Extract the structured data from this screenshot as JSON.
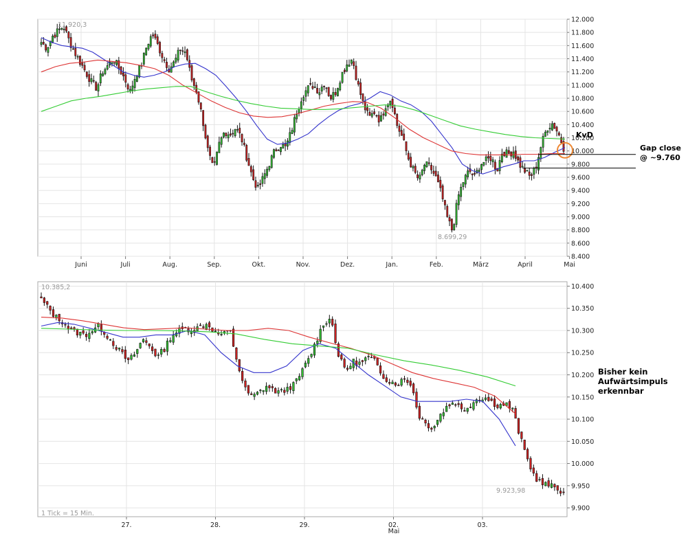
{
  "chart_data": [
    {
      "type": "candlestick",
      "title": "",
      "ylim": [
        8400,
        12000
      ],
      "y_ticks": [
        "12.000",
        "11.800",
        "11.600",
        "11.400",
        "11.200",
        "11.000",
        "10.800",
        "10.600",
        "10.400",
        "10.200",
        "10.000",
        "9.800",
        "9.600",
        "9.400",
        "9.200",
        "9.000",
        "8.800",
        "8.600",
        "8.400"
      ],
      "y_tick_values": [
        12000,
        11800,
        11600,
        11400,
        11200,
        11000,
        10800,
        10600,
        10400,
        10200,
        10000,
        9800,
        9600,
        9400,
        9200,
        9000,
        8800,
        8600,
        8400
      ],
      "x_ticks": [
        "Juni",
        "Juli",
        "Aug.",
        "Sep.",
        "Okt.",
        "Nov.",
        "Dez.",
        "Jan.",
        "Feb.",
        "März",
        "April",
        "Mai"
      ],
      "high_label": "11.920,3",
      "low_label": "8.699,29",
      "high_value": 11920.3,
      "low_value": 8699.29,
      "annotation_circle_label": "KvD",
      "annotation_line1": "Gap close",
      "annotation_line2": "@ ~9.760",
      "annotation_level": 9760,
      "circle_level": 10010,
      "close_path": [
        11650,
        11560,
        11740,
        11820,
        11900,
        11680,
        11500,
        11350,
        11200,
        11050,
        10950,
        11200,
        11300,
        11400,
        11250,
        11100,
        10900,
        11150,
        11300,
        11600,
        11780,
        11600,
        11400,
        11250,
        11350,
        11550,
        11500,
        11100,
        10900,
        10500,
        10000,
        9700,
        10100,
        10300,
        10250,
        10350,
        10200,
        9900,
        9600,
        9420,
        9600,
        9800,
        10000,
        10100,
        10050,
        10300,
        10600,
        10850,
        10950,
        11000,
        10900,
        11050,
        10800,
        10900,
        11150,
        11320,
        11400,
        11000,
        10700,
        10500,
        10600,
        10450,
        10700,
        10800,
        10400,
        10200,
        9900,
        9700,
        9550,
        9800,
        9750,
        9600,
        9350,
        9000,
        8780,
        9300,
        9550,
        9700,
        9600,
        9800,
        9850,
        9900,
        9700,
        10000,
        9950,
        10000,
        9800,
        9700,
        9600,
        9750,
        10100,
        10350,
        10420,
        10280,
        10050
      ],
      "series": [
        {
          "name": "",
          "color": "#3333cc",
          "values": [
            11720,
            11650,
            11600,
            11580,
            11560,
            11500,
            11400,
            11300,
            11200,
            11150,
            11120,
            11150,
            11200,
            11280,
            11320,
            11330,
            11250,
            11150,
            10980,
            10800,
            10600,
            10380,
            10180,
            10100,
            10120,
            10180,
            10260,
            10400,
            10520,
            10620,
            10680,
            10720,
            10800,
            10900,
            10850,
            10760,
            10700,
            10600,
            10450,
            10250,
            10050,
            9800,
            9700,
            9650,
            9700,
            9760,
            9800,
            9850,
            9850,
            9900,
            9980,
            10050
          ]
        },
        {
          "name": "",
          "color": "#dd3333",
          "values": [
            11200,
            11280,
            11330,
            11350,
            11380,
            11360,
            11340,
            11300,
            11250,
            11150,
            11000,
            10880,
            10760,
            10660,
            10580,
            10530,
            10510,
            10520,
            10560,
            10620,
            10680,
            10720,
            10750,
            10740,
            10650,
            10500,
            10330,
            10200,
            10100,
            10000,
            9960,
            9940,
            9940,
            9940,
            9950,
            9950,
            9960,
            9960
          ]
        },
        {
          "name": "",
          "color": "#33cc33",
          "values": [
            10600,
            10680,
            10760,
            10800,
            10830,
            10870,
            10910,
            10940,
            10960,
            10980,
            10980,
            10900,
            10830,
            10770,
            10720,
            10680,
            10650,
            10640,
            10630,
            10630,
            10640,
            10660,
            10680,
            10700,
            10680,
            10620,
            10540,
            10460,
            10380,
            10330,
            10290,
            10250,
            10220,
            10200,
            10190,
            10180
          ]
        }
      ]
    },
    {
      "type": "candlestick",
      "title": "",
      "ylim": [
        9880,
        10410
      ],
      "y_ticks": [
        "10.400",
        "10.350",
        "10.300",
        "10.250",
        "10.200",
        "10.150",
        "10.100",
        "10.050",
        "10.000",
        "9.950",
        "9.900"
      ],
      "y_tick_values": [
        10400,
        10350,
        10300,
        10250,
        10200,
        10150,
        10100,
        10050,
        10000,
        9950,
        9900
      ],
      "x_ticks": [
        "27.",
        "28.",
        "29.",
        "02.",
        "03."
      ],
      "x_subtick": "Mai",
      "high_label": "10.385,2",
      "low_label": "9.923,98",
      "high_value": 10385.2,
      "low_value": 9923.98,
      "footnote": "1 Tick = 15 Min.",
      "side_note": "Bisher kein\nAufwärtsimpuls\nerkennbar",
      "close_path": [
        10370,
        10350,
        10330,
        10320,
        10300,
        10295,
        10290,
        10300,
        10310,
        10290,
        10270,
        10250,
        10230,
        10250,
        10280,
        10265,
        10240,
        10260,
        10290,
        10300,
        10305,
        10300,
        10310,
        10315,
        10295,
        10290,
        10300,
        10230,
        10170,
        10150,
        10160,
        10175,
        10165,
        10160,
        10170,
        10180,
        10210,
        10240,
        10280,
        10320,
        10325,
        10240,
        10210,
        10230,
        10225,
        10240,
        10230,
        10200,
        10185,
        10180,
        10190,
        10180,
        10110,
        10090,
        10080,
        10110,
        10130,
        10140,
        10120,
        10130,
        10145,
        10150,
        10140,
        10130,
        10135,
        10120,
        10060,
        10010,
        9970,
        9955,
        9950,
        9945,
        9935
      ],
      "series": [
        {
          "name": "",
          "color": "#3333cc",
          "values": [
            10310,
            10318,
            10314,
            10305,
            10295,
            10285,
            10285,
            10290,
            10290,
            10300,
            10290,
            10250,
            10220,
            10205,
            10205,
            10220,
            10255,
            10270,
            10260,
            10230,
            10200,
            10175,
            10150,
            10140,
            10140,
            10140,
            10145,
            10140,
            10100,
            10040
          ]
        },
        {
          "name": "",
          "color": "#dd3333",
          "values": [
            10330,
            10328,
            10322,
            10314,
            10306,
            10302,
            10304,
            10306,
            10303,
            10300,
            10300,
            10305,
            10300,
            10285,
            10272,
            10260,
            10245,
            10225,
            10205,
            10192,
            10182,
            10172,
            10152,
            10112
          ]
        },
        {
          "name": "",
          "color": "#33cc33",
          "values": [
            10305,
            10303,
            10301,
            10300,
            10300,
            10299,
            10297,
            10292,
            10280,
            10270,
            10265,
            10260,
            10245,
            10232,
            10222,
            10210,
            10195,
            10175
          ]
        }
      ]
    }
  ]
}
